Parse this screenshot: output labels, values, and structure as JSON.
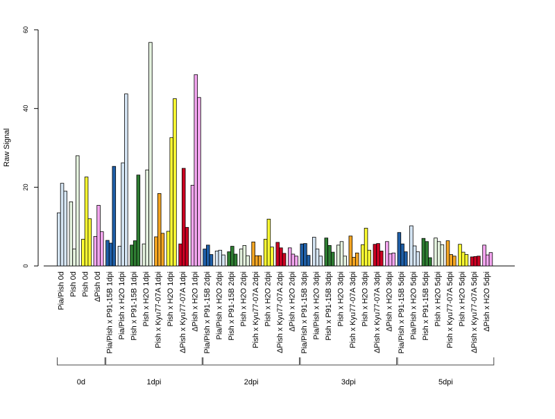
{
  "chart_data": {
    "type": "bar",
    "ylabel": "Raw Signal",
    "ylim": [
      0,
      60
    ],
    "yticks": [
      0,
      20,
      40,
      60
    ],
    "grid": false,
    "legend": "none",
    "bars_per_group": 3,
    "groups": [
      {
        "label": "Pia/Pish 0d",
        "color": "#d6e6f5",
        "values": [
          13.5,
          21.0,
          19.0
        ]
      },
      {
        "label": "Pish 0d",
        "color": "#e5f3df",
        "values": [
          16.3,
          4.3,
          28.0
        ]
      },
      {
        "label": "Pish 0d",
        "color": "#ffff33",
        "values": [
          6.8,
          22.6,
          12.0
        ]
      },
      {
        "label": "ΔPish 0d",
        "color": "#f4a6f0",
        "values": [
          7.5,
          15.4,
          8.7
        ]
      },
      {
        "label": "Pia/Pish x P91-15B 1dpi",
        "color": "#1f5fa8",
        "values": [
          6.5,
          5.8,
          25.3
        ]
      },
      {
        "label": "Pia/Pish x H2O 1dpi",
        "color": "#d6e6f5",
        "values": [
          5.0,
          26.2,
          43.7
        ]
      },
      {
        "label": "Pish x P91-15B 1dpi",
        "color": "#2e7d32",
        "values": [
          5.3,
          6.4,
          23.1
        ]
      },
      {
        "label": "Pish x H2O 1dpi",
        "color": "#e5f3df",
        "values": [
          5.6,
          24.4,
          56.8
        ]
      },
      {
        "label": "Pish x Kyu77-07A 1dpi",
        "color": "#f5a623",
        "values": [
          7.4,
          18.4,
          8.3
        ]
      },
      {
        "label": "Pish x H2O 1dpi",
        "color": "#ffff33",
        "values": [
          8.8,
          32.6,
          42.5
        ]
      },
      {
        "label": "ΔPish x Kyu77-07A 1dpi",
        "color": "#cc0022",
        "values": [
          5.6,
          24.8,
          9.8
        ]
      },
      {
        "label": "ΔPish x H2O 1dpi",
        "color": "#f4a6f0",
        "values": [
          20.5,
          48.6,
          42.8
        ]
      },
      {
        "label": "Pia/Pish x P91-15B 2dpi",
        "color": "#1f5fa8",
        "values": [
          4.3,
          5.3,
          2.9
        ]
      },
      {
        "label": "Pia/Pish x H2O 2dpi",
        "color": "#d6e6f5",
        "values": [
          3.8,
          4.0,
          2.8
        ]
      },
      {
        "label": "Pish x P91-15B 2dpi",
        "color": "#2e7d32",
        "values": [
          3.6,
          5.0,
          3.0
        ]
      },
      {
        "label": "Pish x H2O 2dpi",
        "color": "#e5f3df",
        "values": [
          4.3,
          5.2,
          2.6
        ]
      },
      {
        "label": "Pish x Kyu77-07A 2dpi",
        "color": "#f5a623",
        "values": [
          6.1,
          2.6,
          2.6
        ]
      },
      {
        "label": "Pish x H2O 2dpi",
        "color": "#ffff33",
        "values": [
          6.8,
          11.9,
          4.8
        ]
      },
      {
        "label": "ΔPish x Kyu77-07A 2dpi",
        "color": "#cc0022",
        "values": [
          6.0,
          4.6,
          3.2
        ]
      },
      {
        "label": "ΔPish x H2O 2dpi",
        "color": "#f4a6f0",
        "values": [
          4.6,
          3.0,
          2.5
        ]
      },
      {
        "label": "Pia/Pish x P91-15B 3dpi",
        "color": "#1f5fa8",
        "values": [
          5.6,
          5.7,
          2.7
        ]
      },
      {
        "label": "Pia/Pish x H2O 3dpi",
        "color": "#d6e6f5",
        "values": [
          7.3,
          4.3,
          2.5
        ]
      },
      {
        "label": "Pish x P91-15B 3dpi",
        "color": "#2e7d32",
        "values": [
          7.1,
          5.2,
          3.5
        ]
      },
      {
        "label": "Pish x H2O 3dpi",
        "color": "#e5f3df",
        "values": [
          5.3,
          6.2,
          2.5
        ]
      },
      {
        "label": "Pish x Kyu77-07A 3dpi",
        "color": "#f5a623",
        "values": [
          7.6,
          2.2,
          3.3
        ]
      },
      {
        "label": "Pish x H2O 3dpi",
        "color": "#ffff33",
        "values": [
          5.4,
          9.6,
          4.0
        ]
      },
      {
        "label": "ΔPish x Kyu77-07A 3dpi",
        "color": "#cc0022",
        "values": [
          5.5,
          5.7,
          3.8
        ]
      },
      {
        "label": "ΔPish x H2O 3dpi",
        "color": "#f4a6f0",
        "values": [
          6.2,
          3.1,
          3.3
        ]
      },
      {
        "label": "Pia/Pish x P91-15B 5dpi",
        "color": "#1f5fa8",
        "values": [
          8.5,
          5.6,
          3.6
        ]
      },
      {
        "label": "Pia/Pish x H2O 5dpi",
        "color": "#d6e6f5",
        "values": [
          10.2,
          5.1,
          3.6
        ]
      },
      {
        "label": "Pish x P91-15B 5dpi",
        "color": "#2e7d32",
        "values": [
          7.0,
          6.2,
          2.1
        ]
      },
      {
        "label": "Pish x H2O 5dpi",
        "color": "#e5f3df",
        "values": [
          7.1,
          6.2,
          5.4
        ]
      },
      {
        "label": "Pish x Kyu77-07A 5dpi",
        "color": "#f5a623",
        "values": [
          6.4,
          2.9,
          2.5
        ]
      },
      {
        "label": "Pish x H2O 5dpi",
        "color": "#ffff33",
        "values": [
          5.5,
          3.5,
          2.9
        ]
      },
      {
        "label": "ΔPish x Kyu77-07A 5dpi",
        "color": "#cc0022",
        "values": [
          2.3,
          2.4,
          2.5
        ]
      },
      {
        "label": "ΔPish x H2O 5dpi",
        "color": "#f4a6f0",
        "values": [
          5.3,
          2.8,
          3.4
        ]
      }
    ],
    "timepoints": [
      {
        "label": "0d",
        "first_group": 0,
        "last_group": 3
      },
      {
        "label": "1dpi",
        "first_group": 4,
        "last_group": 11
      },
      {
        "label": "2dpi",
        "first_group": 12,
        "last_group": 19
      },
      {
        "label": "3dpi",
        "first_group": 20,
        "last_group": 27
      },
      {
        "label": "5dpi",
        "first_group": 28,
        "last_group": 35
      }
    ]
  }
}
